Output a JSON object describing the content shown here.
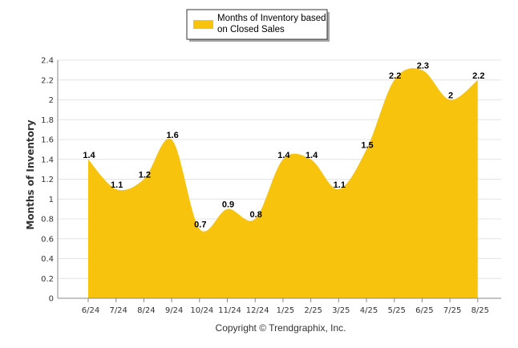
{
  "chart_data": {
    "type": "area",
    "categories": [
      "6/24",
      "7/24",
      "8/24",
      "9/24",
      "10/24",
      "11/24",
      "12/24",
      "1/25",
      "2/25",
      "3/25",
      "4/25",
      "5/25",
      "6/25",
      "7/25",
      "8/25"
    ],
    "series": [
      {
        "name": "Months of Inventory based on Closed Sales",
        "values": [
          1.4,
          1.1,
          1.2,
          1.6,
          0.7,
          0.9,
          0.8,
          1.4,
          1.4,
          1.1,
          1.5,
          2.2,
          2.3,
          2.0,
          2.2
        ],
        "labels": [
          "1.4",
          "1.1",
          "1.2",
          "1.6",
          "0.7",
          "0.9",
          "0.8",
          "1.4",
          "1.4",
          "1.1",
          "1.5",
          "2.2",
          "2.3",
          "2",
          "2.2"
        ],
        "color": "#F7C30C"
      }
    ],
    "ylabel": "Months of Inventory",
    "xlabel": "",
    "ylim": [
      0,
      2.4
    ],
    "yticks": [
      "0",
      "0.2",
      "0.4",
      "0.6",
      "0.8",
      "1",
      "1.2",
      "1.4",
      "1.6",
      "1.8",
      "2",
      "2.2",
      "2.4"
    ],
    "grid": true,
    "legend": {
      "position": "top-center",
      "lines": [
        "Months of Inventory based",
        "on Closed Sales"
      ]
    },
    "footer": "Copyright © Trendgraphix, Inc."
  }
}
